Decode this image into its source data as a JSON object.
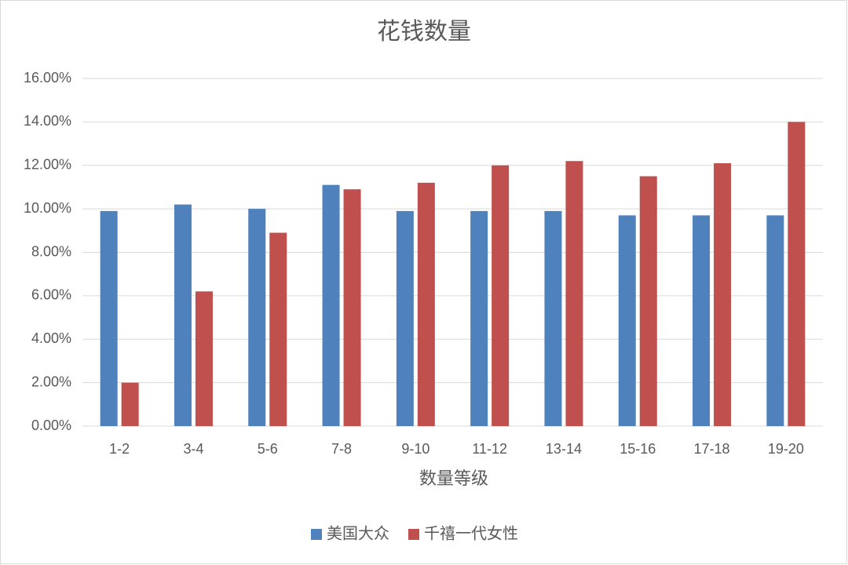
{
  "chart_data": {
    "type": "bar",
    "title": "花钱数量",
    "x_label": "数量等级",
    "categories": [
      "1-2",
      "3-4",
      "5-6",
      "7-8",
      "9-10",
      "11-12",
      "13-14",
      "15-16",
      "17-18",
      "19-20"
    ],
    "series": [
      {
        "name": "美国大众",
        "color": "#4f81bd",
        "values": [
          9.9,
          10.2,
          10.0,
          11.1,
          9.9,
          9.9,
          9.9,
          9.7,
          9.7,
          9.7
        ]
      },
      {
        "name": "千禧一代女性",
        "color": "#c0504d",
        "values": [
          2.0,
          6.2,
          8.9,
          10.9,
          11.2,
          12.0,
          12.2,
          11.5,
          12.1,
          14.0
        ]
      }
    ],
    "ylim": [
      0,
      16
    ],
    "yticks": [
      {
        "value": 0,
        "label": "0.00%"
      },
      {
        "value": 2,
        "label": "2.00%"
      },
      {
        "value": 4,
        "label": "4.00%"
      },
      {
        "value": 6,
        "label": "6.00%"
      },
      {
        "value": 8,
        "label": "8.00%"
      },
      {
        "value": 10,
        "label": "10.00%"
      },
      {
        "value": 12,
        "label": "12.00%"
      },
      {
        "value": 14,
        "label": "14.00%"
      },
      {
        "value": 16,
        "label": "16.00%"
      }
    ],
    "grid": true,
    "legend": "bottom"
  }
}
